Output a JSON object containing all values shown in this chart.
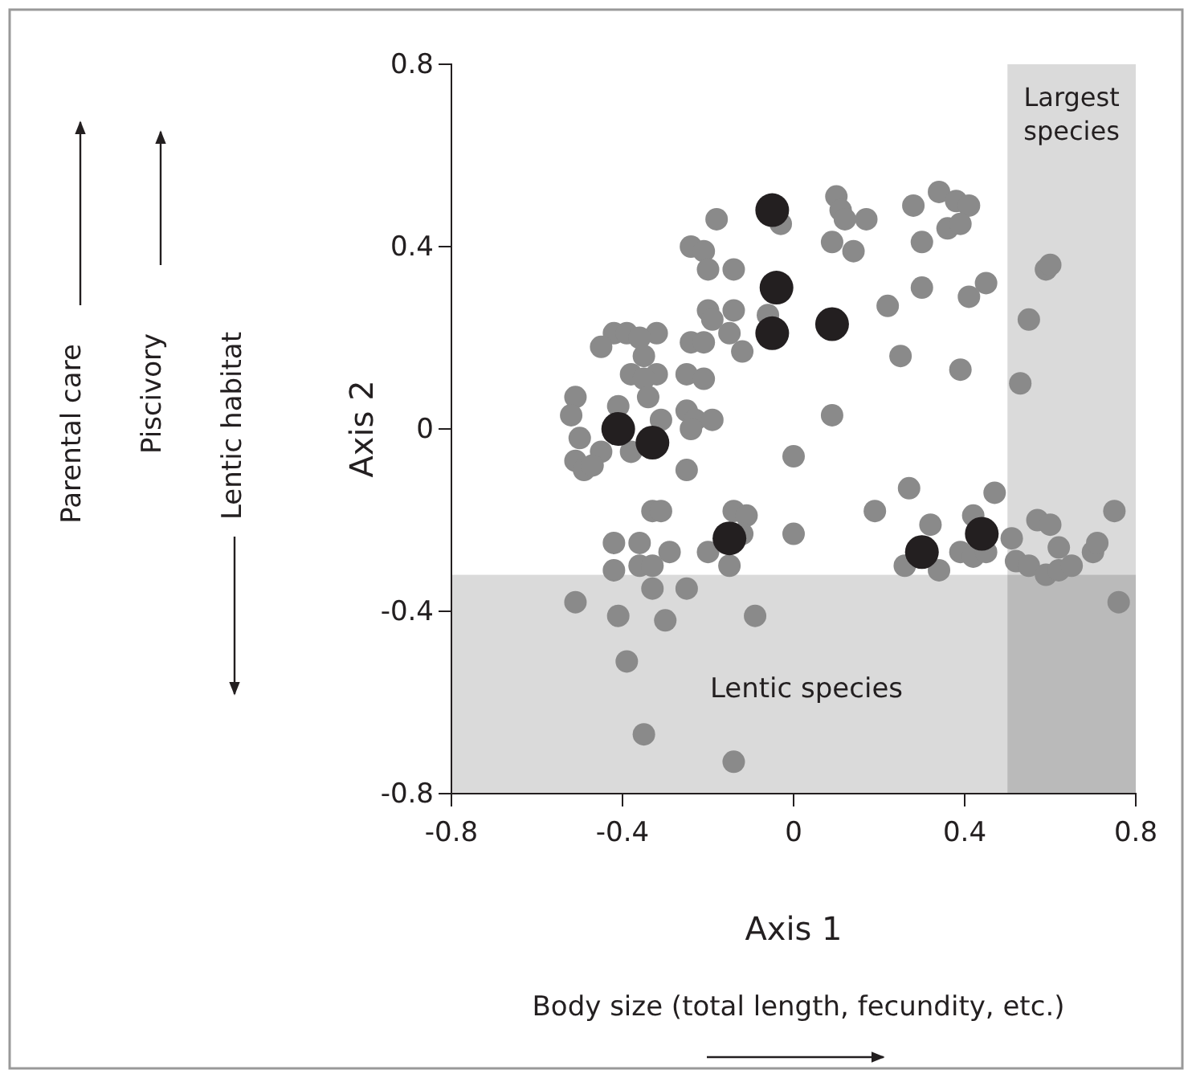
{
  "chart_data": {
    "type": "scatter",
    "xlabel": "Axis 1",
    "ylabel": "Axis 2",
    "xlim": [
      -0.8,
      0.8
    ],
    "xticks": [
      -0.8,
      -0.4,
      0,
      0.4,
      0.8
    ],
    "ylim": [
      -0.8,
      0.8
    ],
    "yticks": [
      -0.8,
      -0.4,
      0,
      0.4,
      0.8
    ],
    "grid": false,
    "marker": "circle",
    "bands": [
      {
        "axis": "x",
        "from": 0.5,
        "to": 0.8,
        "label": "Largest species",
        "color": "#d4d4d4"
      },
      {
        "axis": "y",
        "from": -0.8,
        "to": -0.32,
        "label": "Lentic species",
        "color": "#d4d4d4"
      }
    ],
    "annotations": [
      "Parental care",
      "Piscivory",
      "Lentic habitat",
      "Body size (total length, fecundity, etc.)"
    ],
    "series": [
      {
        "color": "#8a8a8a",
        "x": [
          -0.18,
          -0.24,
          -0.21,
          -0.2,
          -0.14,
          -0.2,
          -0.19,
          -0.14,
          -0.15,
          -0.06,
          -0.12,
          -0.24,
          -0.21,
          -0.32,
          -0.42,
          -0.39,
          -0.36,
          -0.45,
          -0.35,
          -0.32,
          -0.38,
          -0.35,
          -0.34,
          -0.25,
          -0.21,
          -0.51,
          -0.52,
          -0.41,
          -0.25,
          -0.23,
          -0.19,
          -0.31,
          -0.24,
          -0.5,
          -0.45,
          -0.38,
          -0.51,
          -0.49,
          -0.47,
          -0.25,
          0.0,
          0.09,
          0.09,
          -0.03,
          0.1,
          0.11,
          0.14,
          0.12,
          0.17,
          0.28,
          0.34,
          0.38,
          0.41,
          0.3,
          0.36,
          0.39,
          0.22,
          0.3,
          0.41,
          0.45,
          0.25,
          0.39,
          0.59,
          0.6,
          0.55,
          0.53,
          -0.33,
          -0.31,
          -0.14,
          -0.11,
          -0.42,
          -0.36,
          -0.29,
          -0.2,
          -0.12,
          0.0,
          -0.42,
          -0.36,
          -0.33,
          -0.15,
          -0.33,
          -0.25,
          -0.51,
          -0.41,
          -0.3,
          -0.09,
          -0.39,
          -0.35,
          -0.14,
          0.27,
          0.19,
          0.32,
          0.26,
          0.34,
          0.47,
          0.42,
          0.39,
          0.42,
          0.45,
          0.51,
          0.52,
          0.55,
          0.57,
          0.6,
          0.59,
          0.62,
          0.65,
          0.62,
          0.7,
          0.71,
          0.75,
          0.76
        ],
        "values": [
          0.46,
          0.4,
          0.39,
          0.35,
          0.35,
          0.26,
          0.24,
          0.26,
          0.21,
          0.25,
          0.17,
          0.19,
          0.19,
          0.21,
          0.21,
          0.21,
          0.2,
          0.18,
          0.16,
          0.12,
          0.12,
          0.11,
          0.07,
          0.12,
          0.11,
          0.07,
          0.03,
          0.05,
          0.04,
          0.02,
          0.02,
          0.02,
          0.0,
          -0.02,
          -0.05,
          -0.05,
          -0.07,
          -0.09,
          -0.08,
          -0.09,
          -0.06,
          0.03,
          0.41,
          0.45,
          0.51,
          0.48,
          0.39,
          0.46,
          0.46,
          0.49,
          0.52,
          0.5,
          0.49,
          0.41,
          0.44,
          0.45,
          0.27,
          0.31,
          0.29,
          0.32,
          0.16,
          0.13,
          0.35,
          0.36,
          0.24,
          0.1,
          -0.18,
          -0.18,
          -0.18,
          -0.19,
          -0.25,
          -0.25,
          -0.27,
          -0.27,
          -0.23,
          -0.23,
          -0.31,
          -0.3,
          -0.3,
          -0.3,
          -0.35,
          -0.35,
          -0.38,
          -0.41,
          -0.42,
          -0.41,
          -0.51,
          -0.67,
          -0.73,
          -0.13,
          -0.18,
          -0.21,
          -0.3,
          -0.31,
          -0.14,
          -0.19,
          -0.27,
          -0.28,
          -0.27,
          -0.24,
          -0.29,
          -0.3,
          -0.2,
          -0.21,
          -0.32,
          -0.31,
          -0.3,
          -0.26,
          -0.27,
          -0.25,
          -0.18,
          -0.38
        ]
      },
      {
        "color": "#231f20",
        "x": [
          -0.05,
          -0.04,
          -0.05,
          0.09,
          -0.41,
          -0.33,
          -0.15,
          0.3,
          0.44
        ],
        "values": [
          0.48,
          0.31,
          0.21,
          0.23,
          0.0,
          -0.03,
          -0.24,
          -0.27,
          -0.23
        ]
      }
    ]
  }
}
